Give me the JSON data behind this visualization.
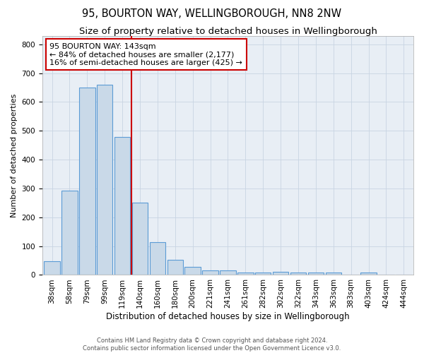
{
  "title": "95, BOURTON WAY, WELLINGBOROUGH, NN8 2NW",
  "subtitle": "Size of property relative to detached houses in Wellingborough",
  "xlabel": "Distribution of detached houses by size in Wellingborough",
  "ylabel": "Number of detached properties",
  "categories": [
    "38sqm",
    "58sqm",
    "79sqm",
    "99sqm",
    "119sqm",
    "140sqm",
    "160sqm",
    "180sqm",
    "200sqm",
    "221sqm",
    "241sqm",
    "261sqm",
    "282sqm",
    "302sqm",
    "322sqm",
    "343sqm",
    "363sqm",
    "383sqm",
    "403sqm",
    "424sqm",
    "444sqm"
  ],
  "values": [
    48,
    293,
    650,
    660,
    478,
    250,
    113,
    53,
    28,
    15,
    15,
    8,
    8,
    10,
    8,
    8,
    8,
    0,
    8,
    0,
    0
  ],
  "bar_color": "#c9d9e8",
  "bar_edge_color": "#5b9bd5",
  "bar_edge_width": 0.8,
  "property_line_color": "#cc0000",
  "annotation_text": "95 BOURTON WAY: 143sqm\n← 84% of detached houses are smaller (2,177)\n16% of semi-detached houses are larger (425) →",
  "annotation_box_color": "white",
  "annotation_box_edge_color": "#cc0000",
  "annotation_fontsize": 8,
  "ylim": [
    0,
    830
  ],
  "yticks": [
    0,
    100,
    200,
    300,
    400,
    500,
    600,
    700,
    800
  ],
  "background_color": "#e8eef5",
  "grid_color": "#c8d4e3",
  "title_fontsize": 10.5,
  "subtitle_fontsize": 9.5,
  "xlabel_fontsize": 8.5,
  "ylabel_fontsize": 8,
  "tick_fontsize": 7.5,
  "footer_line1": "Contains HM Land Registry data © Crown copyright and database right 2024.",
  "footer_line2": "Contains public sector information licensed under the Open Government Licence v3.0.",
  "footer_fontsize": 6
}
